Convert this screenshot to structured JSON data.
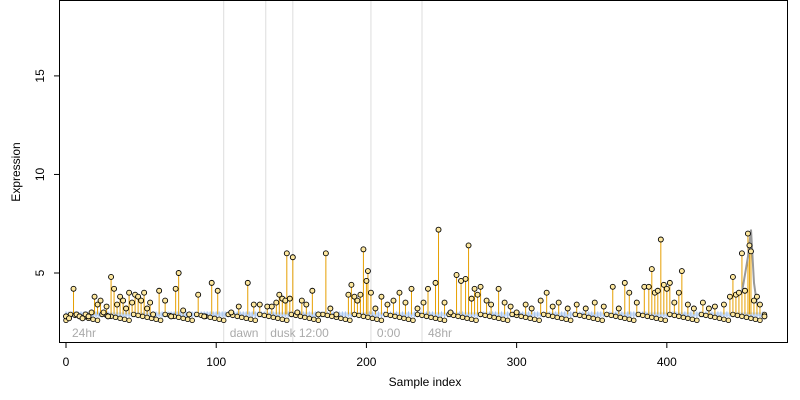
{
  "chart_data": {
    "type": "scatter",
    "xlabel": "Sample index",
    "ylabel": "Expression",
    "xlim": [
      -4,
      480
    ],
    "ylim": [
      1.5,
      18.8
    ],
    "xticks": [
      0,
      100,
      200,
      300,
      400
    ],
    "yticks": [
      5,
      10,
      15
    ],
    "grid": false,
    "baseline": 2.9,
    "group_boundaries": [
      105,
      133,
      151,
      203,
      237
    ],
    "groups": [
      {
        "label": "24hr",
        "x": 2
      },
      {
        "label": "dawn",
        "x": 107
      },
      {
        "label": "dusk",
        "x": 134
      },
      {
        "label": "12:00",
        "x": 153
      },
      {
        "label": "0:00",
        "x": 205
      },
      {
        "label": "48hr",
        "x": 239
      }
    ],
    "colors": {
      "stem": "#E69F00",
      "baseline_band": "#A6C4EE",
      "point_fill": "#FFE9A0",
      "point_stroke": "#000000",
      "boundary": "#DDDDDD",
      "group_label": "#AAAAAA",
      "spike_line": "#999999"
    },
    "points": [
      [
        0,
        2.8
      ],
      [
        2,
        2.7
      ],
      [
        5,
        4.2
      ],
      [
        7,
        2.9
      ],
      [
        9,
        2.8
      ],
      [
        11,
        2.7
      ],
      [
        13,
        2.9
      ],
      [
        15,
        2.8
      ],
      [
        17,
        3.0
      ],
      [
        19,
        3.8
      ],
      [
        21,
        3.4
      ],
      [
        23,
        3.6
      ],
      [
        25,
        3.0
      ],
      [
        27,
        3.3
      ],
      [
        28,
        2.8
      ],
      [
        30,
        4.8
      ],
      [
        32,
        4.2
      ],
      [
        34,
        3.4
      ],
      [
        36,
        3.8
      ],
      [
        38,
        3.6
      ],
      [
        40,
        3.2
      ],
      [
        42,
        4.0
      ],
      [
        44,
        3.5
      ],
      [
        46,
        3.9
      ],
      [
        48,
        3.8
      ],
      [
        50,
        3.6
      ],
      [
        52,
        4.0
      ],
      [
        54,
        3.2
      ],
      [
        56,
        3.5
      ],
      [
        58,
        2.9
      ],
      [
        62,
        4.1
      ],
      [
        66,
        3.6
      ],
      [
        70,
        2.8
      ],
      [
        73,
        4.2
      ],
      [
        75,
        5.0
      ],
      [
        78,
        3.1
      ],
      [
        82,
        2.9
      ],
      [
        88,
        3.9
      ],
      [
        92,
        2.8
      ],
      [
        97,
        4.5
      ],
      [
        101,
        4.1
      ],
      [
        110,
        3.0
      ],
      [
        115,
        3.3
      ],
      [
        121,
        4.5
      ],
      [
        125,
        3.4
      ],
      [
        129,
        3.4
      ],
      [
        134,
        3.3
      ],
      [
        137,
        3.3
      ],
      [
        140,
        3.5
      ],
      [
        142,
        3.9
      ],
      [
        144,
        3.7
      ],
      [
        146,
        3.6
      ],
      [
        147,
        6.0
      ],
      [
        149,
        3.7
      ],
      [
        151,
        5.8
      ],
      [
        154,
        3.0
      ],
      [
        157,
        3.6
      ],
      [
        160,
        3.4
      ],
      [
        164,
        4.1
      ],
      [
        168,
        2.9
      ],
      [
        173,
        6.0
      ],
      [
        176,
        3.2
      ],
      [
        180,
        2.9
      ],
      [
        188,
        3.9
      ],
      [
        190,
        4.4
      ],
      [
        192,
        3.8
      ],
      [
        194,
        3.6
      ],
      [
        196,
        3.9
      ],
      [
        198,
        6.2
      ],
      [
        200,
        4.6
      ],
      [
        201,
        5.1
      ],
      [
        203,
        4.0
      ],
      [
        206,
        3.2
      ],
      [
        210,
        3.8
      ],
      [
        214,
        3.4
      ],
      [
        218,
        3.6
      ],
      [
        222,
        4.0
      ],
      [
        226,
        3.5
      ],
      [
        230,
        4.2
      ],
      [
        234,
        3.2
      ],
      [
        238,
        3.5
      ],
      [
        241,
        4.2
      ],
      [
        246,
        4.5
      ],
      [
        248,
        7.2
      ],
      [
        252,
        3.5
      ],
      [
        256,
        3.0
      ],
      [
        260,
        4.9
      ],
      [
        263,
        4.6
      ],
      [
        266,
        4.7
      ],
      [
        268,
        6.4
      ],
      [
        270,
        3.7
      ],
      [
        272,
        4.2
      ],
      [
        274,
        3.9
      ],
      [
        276,
        4.3
      ],
      [
        280,
        3.6
      ],
      [
        283,
        3.4
      ],
      [
        288,
        4.2
      ],
      [
        292,
        3.5
      ],
      [
        296,
        3.3
      ],
      [
        300,
        3.0
      ],
      [
        306,
        3.4
      ],
      [
        310,
        3.2
      ],
      [
        316,
        3.6
      ],
      [
        320,
        4.0
      ],
      [
        324,
        3.3
      ],
      [
        328,
        3.5
      ],
      [
        334,
        3.2
      ],
      [
        340,
        3.4
      ],
      [
        346,
        3.2
      ],
      [
        352,
        3.5
      ],
      [
        358,
        3.3
      ],
      [
        364,
        4.3
      ],
      [
        368,
        3.2
      ],
      [
        372,
        4.5
      ],
      [
        375,
        4.0
      ],
      [
        380,
        3.5
      ],
      [
        385,
        4.3
      ],
      [
        388,
        4.3
      ],
      [
        390,
        5.2
      ],
      [
        392,
        4.0
      ],
      [
        394,
        4.1
      ],
      [
        396,
        6.7
      ],
      [
        398,
        4.4
      ],
      [
        400,
        4.2
      ],
      [
        402,
        4.5
      ],
      [
        405,
        3.5
      ],
      [
        408,
        4.0
      ],
      [
        410,
        5.1
      ],
      [
        414,
        3.4
      ],
      [
        418,
        3.2
      ],
      [
        424,
        3.5
      ],
      [
        428,
        3.2
      ],
      [
        432,
        3.3
      ],
      [
        438,
        3.4
      ],
      [
        442,
        3.8
      ],
      [
        444,
        4.8
      ],
      [
        446,
        3.9
      ],
      [
        448,
        4.0
      ],
      [
        450,
        6.0
      ],
      [
        452,
        4.1
      ],
      [
        454,
        7.0
      ],
      [
        455,
        6.4
      ],
      [
        456,
        6.1
      ],
      [
        458,
        3.6
      ],
      [
        460,
        3.8
      ],
      [
        462,
        3.4
      ],
      [
        465,
        2.8
      ]
    ],
    "spike": [
      [
        450,
        4.0
      ],
      [
        452,
        4.9
      ],
      [
        454,
        5.8
      ],
      [
        456,
        7.2
      ],
      [
        458,
        4.5
      ],
      [
        460,
        3.4
      ]
    ]
  }
}
